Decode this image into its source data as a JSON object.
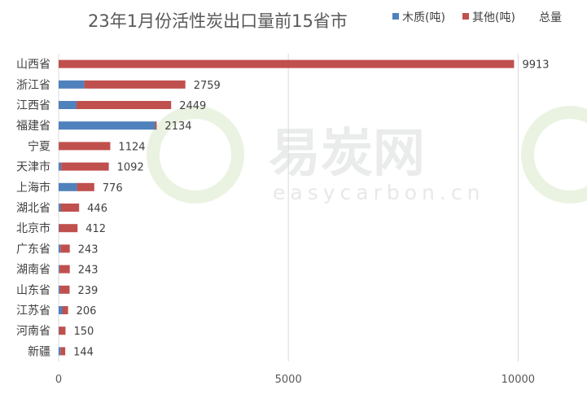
{
  "chart_data": {
    "type": "bar",
    "orientation": "horizontal",
    "stacked": true,
    "title": "23年1月份活性炭出口量前15省市",
    "categories": [
      "山西省",
      "浙江省",
      "江西省",
      "福建省",
      "宁夏",
      "天津市",
      "上海市",
      "湖北省",
      "北京市",
      "广东省",
      "湖南省",
      "山东省",
      "江苏省",
      "河南省",
      "新疆"
    ],
    "series": [
      {
        "name": "木质(吨)",
        "color": "#4f81bd",
        "values": [
          0,
          560,
          390,
          2100,
          5,
          55,
          400,
          45,
          10,
          40,
          20,
          25,
          80,
          8,
          40
        ]
      },
      {
        "name": "其他(吨)",
        "color": "#c0504d",
        "values": [
          9913,
          2199,
          2059,
          34,
          1119,
          1037,
          376,
          401,
          402,
          203,
          223,
          214,
          126,
          142,
          104
        ]
      }
    ],
    "totals_legend": "总量",
    "totals": [
      "9913",
      "2759",
      "2449",
      "2134",
      "1124",
      "1092",
      "776",
      "446",
      "412",
      "243",
      "243",
      "239",
      "206",
      "150",
      "144"
    ],
    "xlim": [
      0,
      11500
    ],
    "xticks": [
      0,
      5000,
      10000
    ],
    "xtick_labels": [
      "0",
      "5000",
      "10000"
    ],
    "grid": true,
    "legend_position": "top-right"
  },
  "watermark": {
    "text": "易炭网",
    "url": "easycarbon.cn",
    "color": "#8bc34a"
  }
}
